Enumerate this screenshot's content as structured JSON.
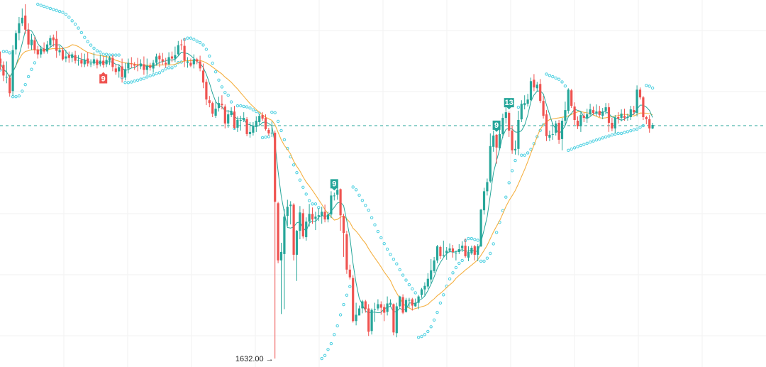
{
  "chart_data": {
    "type": "candlestick",
    "title": "",
    "xlabel": "",
    "ylabel": "",
    "grid": true,
    "ylim": [
      1620,
      2140
    ],
    "reference_price": 1962,
    "low_annotation": {
      "text": "1632.00 →",
      "price": 1632,
      "bar": 88
    },
    "colors": {
      "up": "#26a69a",
      "down": "#ef5350",
      "ma_fast": "#26a69a",
      "ma_slow": "#f5b041",
      "sar": "#4dd0e1",
      "grid": "#f2f2f2",
      "ref": "#26a69a"
    },
    "candles": [
      [
        2057,
        2050,
        2067,
        2041
      ],
      [
        2048,
        2033,
        2053,
        2025
      ],
      [
        2031,
        2031,
        2053,
        2022
      ],
      [
        2030,
        2008,
        2034,
        2003
      ],
      [
        2011,
        2069,
        2076,
        2004
      ],
      [
        2070,
        2093,
        2097,
        2063
      ],
      [
        2093,
        2107,
        2116,
        2083
      ],
      [
        2107,
        2115,
        2128,
        2103
      ],
      [
        2118,
        2098,
        2134,
        2092
      ],
      [
        2098,
        2077,
        2107,
        2071
      ],
      [
        2076,
        2084,
        2092,
        2069
      ],
      [
        2083,
        2069,
        2088,
        2064
      ],
      [
        2070,
        2063,
        2075,
        2057
      ],
      [
        2063,
        2071,
        2075,
        2058
      ],
      [
        2071,
        2067,
        2080,
        2064
      ],
      [
        2067,
        2077,
        2082,
        2064
      ],
      [
        2076,
        2086,
        2090,
        2073
      ],
      [
        2087,
        2083,
        2091,
        2074
      ],
      [
        2085,
        2068,
        2096,
        2058
      ],
      [
        2066,
        2069,
        2075,
        2061
      ],
      [
        2069,
        2056,
        2073,
        2054
      ],
      [
        2057,
        2060,
        2069,
        2052
      ],
      [
        2062,
        2058,
        2067,
        2051
      ],
      [
        2058,
        2063,
        2066,
        2052
      ],
      [
        2062,
        2054,
        2068,
        2050
      ],
      [
        2054,
        2055,
        2062,
        2047
      ],
      [
        2055,
        2050,
        2065,
        2045
      ],
      [
        2049,
        2055,
        2064,
        2045
      ],
      [
        2057,
        2050,
        2066,
        2046
      ],
      [
        2049,
        2050,
        2056,
        2045
      ],
      [
        2050,
        2056,
        2066,
        2047
      ],
      [
        2055,
        2048,
        2057,
        2043
      ],
      [
        2049,
        2054,
        2063,
        2046
      ],
      [
        2054,
        2048,
        2060,
        2044
      ],
      [
        2049,
        2055,
        2062,
        2045
      ],
      [
        2054,
        2058,
        2061,
        2048
      ],
      [
        2058,
        2045,
        2062,
        2039
      ],
      [
        2043,
        2038,
        2049,
        2034
      ],
      [
        2039,
        2045,
        2049,
        2030
      ],
      [
        2046,
        2031,
        2057,
        2023
      ],
      [
        2030,
        2042,
        2051,
        2026
      ],
      [
        2043,
        2051,
        2057,
        2036
      ],
      [
        2050,
        2049,
        2059,
        2044
      ],
      [
        2049,
        2047,
        2052,
        2041
      ],
      [
        2048,
        2047,
        2058,
        2039
      ],
      [
        2046,
        2050,
        2056,
        2042
      ],
      [
        2049,
        2041,
        2060,
        2034
      ],
      [
        2041,
        2047,
        2057,
        2034
      ],
      [
        2047,
        2044,
        2051,
        2040
      ],
      [
        2043,
        2051,
        2055,
        2037
      ],
      [
        2051,
        2060,
        2064,
        2047
      ],
      [
        2061,
        2056,
        2065,
        2045
      ],
      [
        2056,
        2053,
        2065,
        2048
      ],
      [
        2051,
        2049,
        2058,
        2044
      ],
      [
        2049,
        2059,
        2066,
        2047
      ],
      [
        2060,
        2057,
        2067,
        2052
      ],
      [
        2057,
        2062,
        2074,
        2052
      ],
      [
        2063,
        2076,
        2082,
        2061
      ],
      [
        2077,
        2076,
        2084,
        2069
      ],
      [
        2075,
        2054,
        2086,
        2045
      ],
      [
        2051,
        2053,
        2059,
        2044
      ],
      [
        2051,
        2047,
        2057,
        2045
      ],
      [
        2049,
        2056,
        2063,
        2043
      ],
      [
        2056,
        2053,
        2058,
        2049
      ],
      [
        2053,
        2043,
        2061,
        2039
      ],
      [
        2040,
        2023,
        2050,
        2015
      ],
      [
        2024,
        1999,
        2028,
        1991
      ],
      [
        1998,
        1994,
        2004,
        1988
      ],
      [
        1994,
        1979,
        1996,
        1974
      ],
      [
        1976,
        1986,
        1997,
        1973
      ],
      [
        1987,
        1994,
        2003,
        1982
      ],
      [
        1993,
        1991,
        2005,
        1985
      ],
      [
        1989,
        1965,
        1992,
        1958
      ],
      [
        1965,
        1978,
        1984,
        1959
      ],
      [
        1977,
        1983,
        1988,
        1974
      ],
      [
        1982,
        1959,
        1990,
        1957
      ],
      [
        1959,
        1970,
        1975,
        1953
      ],
      [
        1969,
        1970,
        1976,
        1955
      ],
      [
        1970,
        1973,
        1981,
        1967
      ],
      [
        1971,
        1950,
        1974,
        1947
      ],
      [
        1950,
        1953,
        1967,
        1945
      ],
      [
        1952,
        1962,
        1967,
        1948
      ],
      [
        1960,
        1969,
        1975,
        1953
      ],
      [
        1967,
        1976,
        1979,
        1963
      ],
      [
        1977,
        1972,
        1981,
        1969
      ],
      [
        1973,
        1957,
        1978,
        1955
      ],
      [
        1956,
        1951,
        1959,
        1948
      ],
      [
        1951,
        1952,
        1968,
        1946
      ],
      [
        1952,
        1854,
        1955,
        1632
      ],
      [
        1852,
        1771,
        1854,
        1767
      ],
      [
        1771,
        1783,
        1796,
        1695
      ],
      [
        1780,
        1833,
        1844,
        1702
      ],
      [
        1834,
        1847,
        1857,
        1820
      ],
      [
        1848,
        1850,
        1855,
        1822
      ],
      [
        1850,
        1779,
        1852,
        1771
      ],
      [
        1779,
        1813,
        1814,
        1742
      ],
      [
        1813,
        1839,
        1848,
        1801
      ],
      [
        1838,
        1805,
        1844,
        1802
      ],
      [
        1804,
        1826,
        1832,
        1799
      ],
      [
        1826,
        1837,
        1851,
        1819
      ],
      [
        1837,
        1829,
        1846,
        1823
      ],
      [
        1830,
        1833,
        1840,
        1814
      ],
      [
        1833,
        1835,
        1845,
        1827
      ],
      [
        1834,
        1840,
        1847,
        1823
      ],
      [
        1840,
        1829,
        1850,
        1825
      ],
      [
        1829,
        1836,
        1840,
        1825
      ],
      [
        1836,
        1863,
        1869,
        1831
      ],
      [
        1863,
        1863,
        1867,
        1856
      ],
      [
        1864,
        1871,
        1875,
        1857
      ],
      [
        1872,
        1835,
        1873,
        1813
      ],
      [
        1834,
        1810,
        1837,
        1776
      ],
      [
        1808,
        1758,
        1813,
        1752
      ],
      [
        1758,
        1747,
        1765,
        1744
      ],
      [
        1746,
        1685,
        1750,
        1683
      ],
      [
        1685,
        1694,
        1711,
        1679
      ],
      [
        1693,
        1703,
        1707,
        1697
      ],
      [
        1703,
        1713,
        1715,
        1696
      ],
      [
        1713,
        1702,
        1715,
        1697
      ],
      [
        1703,
        1670,
        1709,
        1664
      ],
      [
        1671,
        1701,
        1703,
        1666
      ],
      [
        1701,
        1702,
        1711,
        1684
      ],
      [
        1703,
        1709,
        1716,
        1700
      ],
      [
        1709,
        1704,
        1713,
        1694
      ],
      [
        1705,
        1697,
        1709,
        1685
      ],
      [
        1698,
        1710,
        1720,
        1693
      ],
      [
        1708,
        1711,
        1716,
        1705
      ],
      [
        1709,
        1669,
        1710,
        1665
      ],
      [
        1668,
        1706,
        1711,
        1662
      ],
      [
        1706,
        1720,
        1721,
        1704
      ],
      [
        1719,
        1697,
        1723,
        1695
      ],
      [
        1698,
        1715,
        1718,
        1697
      ],
      [
        1714,
        1715,
        1718,
        1704
      ],
      [
        1716,
        1707,
        1718,
        1700
      ],
      [
        1706,
        1711,
        1717,
        1705
      ],
      [
        1711,
        1720,
        1722,
        1702
      ],
      [
        1722,
        1730,
        1732,
        1718
      ],
      [
        1730,
        1735,
        1740,
        1721
      ],
      [
        1734,
        1745,
        1753,
        1731
      ],
      [
        1744,
        1757,
        1773,
        1738
      ],
      [
        1756,
        1771,
        1776,
        1753
      ],
      [
        1771,
        1791,
        1793,
        1767
      ],
      [
        1790,
        1777,
        1792,
        1773
      ],
      [
        1779,
        1779,
        1799,
        1776
      ],
      [
        1781,
        1785,
        1790,
        1772
      ],
      [
        1785,
        1788,
        1795,
        1782
      ],
      [
        1788,
        1783,
        1793,
        1775
      ],
      [
        1782,
        1782,
        1785,
        1771
      ],
      [
        1783,
        1787,
        1794,
        1780
      ],
      [
        1788,
        1792,
        1798,
        1783
      ],
      [
        1792,
        1777,
        1802,
        1775
      ],
      [
        1775,
        1783,
        1791,
        1770
      ],
      [
        1781,
        1789,
        1792,
        1779
      ],
      [
        1791,
        1779,
        1793,
        1771
      ],
      [
        1779,
        1791,
        1794,
        1770
      ],
      [
        1791,
        1843,
        1844,
        1790
      ],
      [
        1842,
        1869,
        1874,
        1836
      ],
      [
        1869,
        1882,
        1887,
        1863
      ],
      [
        1883,
        1933,
        1951,
        1881
      ],
      [
        1932,
        1948,
        1955,
        1925
      ],
      [
        1949,
        1931,
        1950,
        1908
      ],
      [
        1930,
        1950,
        1962,
        1928
      ],
      [
        1950,
        1973,
        1979,
        1945
      ],
      [
        1973,
        1981,
        1988,
        1965
      ],
      [
        1980,
        1955,
        1982,
        1946
      ],
      [
        1955,
        1927,
        1962,
        1922
      ],
      [
        1927,
        1929,
        1941,
        1921
      ],
      [
        1929,
        1970,
        1983,
        1920
      ],
      [
        1971,
        1993,
        1998,
        1967
      ],
      [
        1991,
        1994,
        2005,
        1985
      ],
      [
        1993,
        1999,
        2007,
        1989
      ],
      [
        1998,
        2025,
        2030,
        1997
      ],
      [
        2027,
        2016,
        2035,
        2011
      ],
      [
        2015,
        2020,
        2024,
        2010
      ],
      [
        2021,
        1997,
        2028,
        1994
      ],
      [
        1997,
        1976,
        2004,
        1972
      ],
      [
        1978,
        1947,
        1984,
        1940
      ],
      [
        1945,
        1949,
        1955,
        1940
      ],
      [
        1950,
        1950,
        1966,
        1942
      ],
      [
        1952,
        1965,
        1969,
        1948
      ],
      [
        1966,
        1942,
        1970,
        1936
      ],
      [
        1943,
        1969,
        1973,
        1927
      ],
      [
        1969,
        1984,
        1996,
        1963
      ],
      [
        1983,
        2013,
        2015,
        1979
      ],
      [
        2012,
        1990,
        2014,
        1987
      ],
      [
        1989,
        1970,
        1995,
        1963
      ],
      [
        1969,
        1961,
        1975,
        1957
      ],
      [
        1961,
        1977,
        1982,
        1953
      ],
      [
        1976,
        1973,
        1980,
        1967
      ],
      [
        1973,
        1978,
        1986,
        1966
      ],
      [
        1978,
        1985,
        1993,
        1976
      ],
      [
        1984,
        1980,
        1989,
        1977
      ],
      [
        1980,
        1982,
        1992,
        1975
      ],
      [
        1983,
        1977,
        1990,
        1974
      ],
      [
        1976,
        1982,
        1987,
        1971
      ],
      [
        1983,
        1988,
        1994,
        1978
      ],
      [
        1988,
        1966,
        1994,
        1953
      ],
      [
        1966,
        1958,
        1973,
        1954
      ],
      [
        1958,
        1973,
        1977,
        1951
      ],
      [
        1974,
        1972,
        1981,
        1965
      ],
      [
        1973,
        1979,
        1985,
        1968
      ],
      [
        1976,
        1973,
        1986,
        1969
      ],
      [
        1973,
        1974,
        1979,
        1969
      ],
      [
        1974,
        1985,
        1990,
        1970
      ],
      [
        1984,
        1981,
        1990,
        1977
      ],
      [
        1980,
        2013,
        2019,
        1975
      ],
      [
        2013,
        2002,
        2016,
        1999
      ],
      [
        2002,
        1974,
        2004,
        1970
      ],
      [
        1974,
        1971,
        1976,
        1964
      ],
      [
        1971,
        1958,
        1977,
        1952
      ],
      [
        1958,
        1963,
        1966,
        1957
      ]
    ],
    "markers": [
      {
        "bar": 33,
        "label": "9",
        "color": "#ef5350",
        "position": "below"
      },
      {
        "bar": 107,
        "label": "9",
        "color": "#26a69a",
        "position": "above"
      },
      {
        "bar": 159,
        "label": "9",
        "color": "#26a69a",
        "position": "above"
      },
      {
        "bar": 163,
        "label": "13",
        "color": "#26a69a",
        "position": "above"
      }
    ]
  }
}
